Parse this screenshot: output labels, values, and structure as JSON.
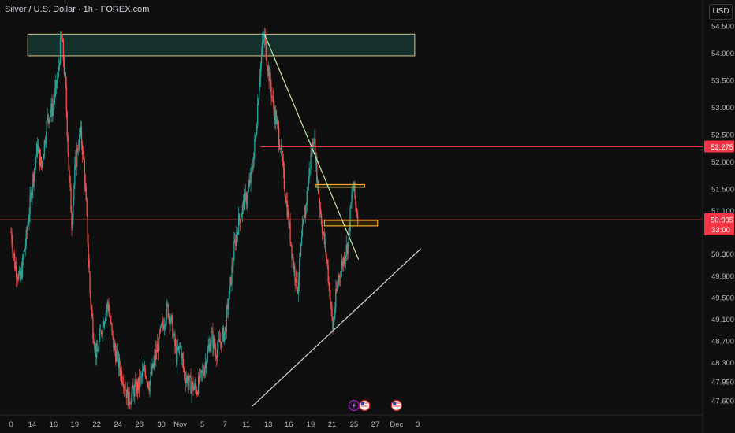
{
  "header": {
    "title": "Silver / U.S. Dollar · 1h · FOREX.com",
    "currency_button": "USD"
  },
  "colors": {
    "background": "#0f0f0f",
    "up_candle": "#26a69a",
    "down_candle": "#ef5350",
    "price_tag": "#f23645",
    "zone_fill": "#1e4d45",
    "zone_border": "#d4c48a",
    "box_border": "#f5a623",
    "trendline_down": "#c5e6a6",
    "trendline_up": "#d9d9d9"
  },
  "chart_data": {
    "type": "candlestick",
    "ylim": [
      47.45,
      54.65
    ],
    "y_ticks": [
      54.5,
      54.0,
      53.5,
      53.0,
      52.5,
      52.0,
      51.5,
      51.1,
      50.3,
      49.9,
      49.5,
      49.1,
      48.7,
      48.3,
      47.95,
      47.6
    ],
    "y_tick_labels": [
      "54.500",
      "54.000",
      "53.500",
      "53.000",
      "52.500",
      "52.000",
      "51.500",
      "51.100",
      "50.300",
      "49.900",
      "49.500",
      "49.100",
      "48.700",
      "48.300",
      "47.950",
      "47.600"
    ],
    "x_ticks": [
      {
        "label": "0",
        "index": 0
      },
      {
        "label": "14",
        "index": 28
      },
      {
        "label": "16",
        "index": 56
      },
      {
        "label": "19",
        "index": 84
      },
      {
        "label": "22",
        "index": 113
      },
      {
        "label": "24",
        "index": 141
      },
      {
        "label": "28",
        "index": 169
      },
      {
        "label": "30",
        "index": 198
      },
      {
        "label": "Nov",
        "index": 223
      },
      {
        "label": "5",
        "index": 252
      },
      {
        "label": "7",
        "index": 282
      },
      {
        "label": "11",
        "index": 310
      },
      {
        "label": "13",
        "index": 339
      },
      {
        "label": "16",
        "index": 366
      },
      {
        "label": "19",
        "index": 395
      },
      {
        "label": "21",
        "index": 423
      },
      {
        "label": "25",
        "index": 452
      },
      {
        "label": "27",
        "index": 480
      },
      {
        "label": "Dec",
        "index": 508
      },
      {
        "label": "3",
        "index": 536
      }
    ],
    "key_points": [
      [
        0,
        50.7
      ],
      [
        5,
        50.1
      ],
      [
        12,
        49.8
      ],
      [
        20,
        50.6
      ],
      [
        28,
        51.6
      ],
      [
        35,
        52.3
      ],
      [
        40,
        51.9
      ],
      [
        48,
        52.8
      ],
      [
        55,
        53.0
      ],
      [
        62,
        53.6
      ],
      [
        66,
        54.3
      ],
      [
        68,
        54.1
      ],
      [
        72,
        53.3
      ],
      [
        76,
        51.9
      ],
      [
        80,
        50.9
      ],
      [
        84,
        51.8
      ],
      [
        88,
        52.3
      ],
      [
        92,
        52.5
      ],
      [
        96,
        52.0
      ],
      [
        100,
        50.9
      ],
      [
        104,
        49.6
      ],
      [
        108,
        48.9
      ],
      [
        113,
        48.4
      ],
      [
        120,
        49.0
      ],
      [
        128,
        49.4
      ],
      [
        134,
        48.7
      ],
      [
        141,
        48.3
      ],
      [
        148,
        48.0
      ],
      [
        155,
        47.6
      ],
      [
        162,
        47.8
      ],
      [
        169,
        47.9
      ],
      [
        176,
        48.2
      ],
      [
        182,
        47.9
      ],
      [
        190,
        48.4
      ],
      [
        198,
        48.9
      ],
      [
        206,
        49.3
      ],
      [
        212,
        49.0
      ],
      [
        218,
        48.4
      ],
      [
        223,
        48.6
      ],
      [
        228,
        48.1
      ],
      [
        236,
        47.9
      ],
      [
        244,
        47.8
      ],
      [
        252,
        48.1
      ],
      [
        258,
        48.4
      ],
      [
        264,
        48.8
      ],
      [
        270,
        48.5
      ],
      [
        276,
        48.7
      ],
      [
        282,
        48.9
      ],
      [
        288,
        49.6
      ],
      [
        294,
        50.4
      ],
      [
        300,
        50.9
      ],
      [
        306,
        51.2
      ],
      [
        312,
        51.4
      ],
      [
        318,
        51.9
      ],
      [
        323,
        52.6
      ],
      [
        327,
        53.5
      ],
      [
        331,
        54.1
      ],
      [
        334,
        54.3
      ],
      [
        337,
        53.9
      ],
      [
        342,
        53.4
      ],
      [
        346,
        53.0
      ],
      [
        350,
        52.7
      ],
      [
        355,
        52.3
      ],
      [
        360,
        51.6
      ],
      [
        366,
        50.9
      ],
      [
        372,
        50.1
      ],
      [
        378,
        49.7
      ],
      [
        384,
        50.7
      ],
      [
        390,
        51.4
      ],
      [
        395,
        52.1
      ],
      [
        399,
        52.5
      ],
      [
        404,
        51.6
      ],
      [
        410,
        50.8
      ],
      [
        416,
        50.2
      ],
      [
        420,
        49.6
      ],
      [
        424,
        48.9
      ],
      [
        428,
        49.5
      ],
      [
        432,
        49.9
      ],
      [
        438,
        50.2
      ],
      [
        444,
        50.5
      ],
      [
        448,
        51.2
      ],
      [
        451,
        51.6
      ],
      [
        454,
        51.2
      ],
      [
        457,
        51.0
      ]
    ],
    "annotations": {
      "resistance_zone": {
        "x_start": 22,
        "x_end": 532,
        "y_low": 53.95,
        "y_high": 54.35
      },
      "horizontal_line": {
        "x_start": 329,
        "x_end": 532,
        "y": 52.275
      },
      "current_price_line": {
        "y": 50.935
      },
      "upper_box": {
        "x_start": 402,
        "x_end": 466,
        "y_low": 51.53,
        "y_high": 51.58
      },
      "lower_box": {
        "x_start": 413,
        "x_end": 483,
        "y_low": 50.82,
        "y_high": 50.92
      },
      "down_trendline": {
        "x1": 334,
        "y1": 54.35,
        "x2": 458,
        "y2": 50.2
      },
      "up_trendline": {
        "x1": 318,
        "y1": 47.5,
        "x2": 540,
        "y2": 50.4
      }
    },
    "price_tags": {
      "level_label": "52.275",
      "level_value": 52.275,
      "current_label": "50.935",
      "current_value": 50.935,
      "countdown": "33:00"
    },
    "event_markers": [
      {
        "type": "lightning-icon",
        "index": 452
      },
      {
        "type": "us-flag-icon",
        "index": 466
      },
      {
        "type": "us-flag-icon",
        "index": 508
      }
    ]
  }
}
